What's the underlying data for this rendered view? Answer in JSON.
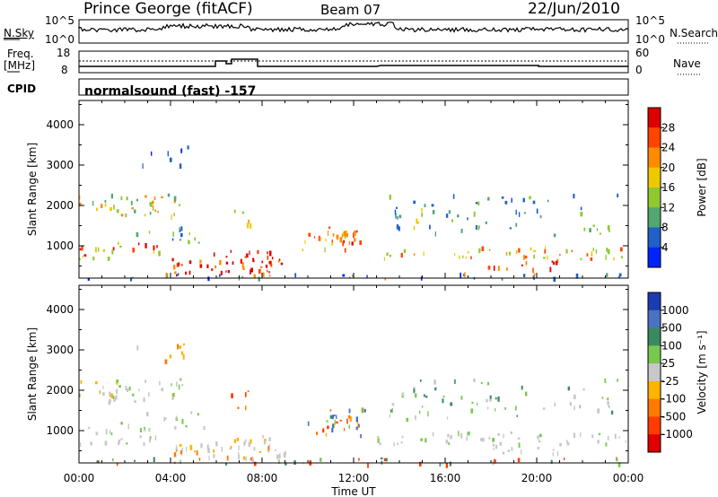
{
  "header": {
    "station": "Prince George (fitACF)",
    "beam": "Beam 07",
    "date": "22/Jun/2010"
  },
  "side_labels": {
    "nsky": "N.Sky",
    "nsearch": "N.Search",
    "freq": "Freq.",
    "freq_unit": "[MHz]",
    "nave": "Nave",
    "cpid": "CPID"
  },
  "ticks": {
    "sky_top": "10^5",
    "sky_bottom": "10^0",
    "search_top": "10^5",
    "search_bottom": "10^0",
    "freq_top": "18",
    "freq_bottom": "8",
    "nave_top": "60",
    "nave_bottom": "0"
  },
  "cpid_text": "normalsound (fast) -157",
  "chart_data": [
    {
      "type": "heatmap",
      "name": "power",
      "ylabel": "Slant Range [km]",
      "colorbar_label": "Power [dB]",
      "colorbar_ticks": [
        "28",
        "24",
        "20",
        "16",
        "12",
        "8",
        "4"
      ],
      "colorbar_colors": [
        "#dd0000",
        "#ff4400",
        "#ff8c00",
        "#f0c800",
        "#90c830",
        "#50a870",
        "#2060c8",
        "#0022ff"
      ],
      "yticks": [
        "4000",
        "3000",
        "2000",
        "1000"
      ],
      "ylim": [
        200,
        4600
      ],
      "xlim": [
        0,
        24
      ],
      "xticks": [
        "00:00",
        "04:00",
        "08:00",
        "12:00",
        "16:00",
        "20:00",
        "00:00"
      ],
      "xlabel": ""
    },
    {
      "type": "heatmap",
      "name": "velocity",
      "ylabel": "Slant Range [km]",
      "colorbar_label": "Velocity [m s⁻¹]",
      "colorbar_ticks": [
        "1000",
        "500",
        "100",
        "25",
        "-25",
        "-100",
        "-500",
        "-1000"
      ],
      "colorbar_colors": [
        "#1d3bb0",
        "#4a72c0",
        "#3a8a60",
        "#78c850",
        "#c8c8c8",
        "#ffb400",
        "#ff7800",
        "#ff3c00",
        "#e00000"
      ],
      "yticks": [
        "4000",
        "3000",
        "2000",
        "1000"
      ],
      "ylim": [
        200,
        4600
      ],
      "xlim": [
        0,
        24
      ],
      "xticks": [
        "00:00",
        "04:00",
        "08:00",
        "12:00",
        "16:00",
        "20:00",
        "00:00"
      ],
      "xlabel": "Time UT"
    }
  ]
}
